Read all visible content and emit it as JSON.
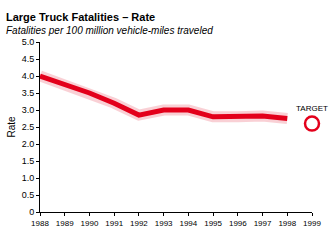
{
  "chart_data": {
    "type": "line",
    "title": "Large Truck Fatalities – Rate",
    "subtitle": "Fatalities per 100 million vehicle-miles traveled",
    "y_label": "Rate",
    "x": [
      1988,
      1989,
      1990,
      1991,
      1992,
      1993,
      1994,
      1995,
      1996,
      1997,
      1998,
      1999
    ],
    "values": [
      4.0,
      3.75,
      3.5,
      3.2,
      2.85,
      3.0,
      3.0,
      2.8,
      2.8,
      2.82,
      2.75,
      null
    ],
    "color": "#e3001b",
    "xlim": [
      1988,
      1999
    ],
    "xticks": [
      1988,
      1989,
      1990,
      1991,
      1992,
      1993,
      1994,
      1995,
      1996,
      1997,
      1998,
      1999
    ],
    "ylim": [
      0,
      5
    ],
    "yticks": [
      0,
      0.5,
      {
        "value": 1,
        "label": "1.0"
      },
      1.5,
      {
        "value": 2,
        "label": "2.0"
      },
      2.5,
      {
        "value": 3,
        "label": "3.0"
      },
      3.5,
      {
        "value": 4,
        "label": "4.0"
      },
      4.5,
      {
        "value": 5,
        "label": "5.0"
      }
    ],
    "grid": false,
    "target": {
      "x": 1999,
      "value": 2.6,
      "label": "TARGET",
      "marker": "circle-open"
    }
  }
}
